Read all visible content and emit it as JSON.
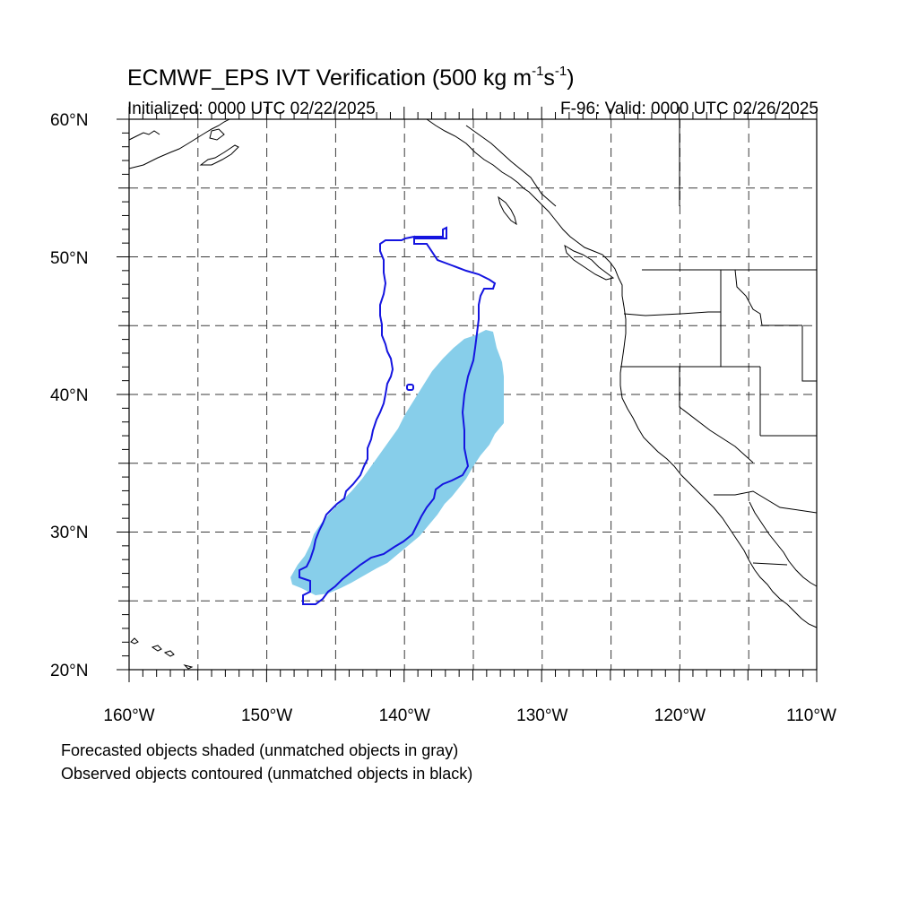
{
  "title": {
    "main": "ECMWF_EPS IVT Verification (500 kg m",
    "exp1": "-1",
    "mid": "s",
    "exp2": "-1",
    "end": ")"
  },
  "subtitle": {
    "initialized": "Initialized: 0000 UTC 02/22/2025",
    "valid": "F-96: Valid: 0000 UTC 02/26/2025"
  },
  "axes": {
    "lat_labels": [
      "20°N",
      "30°N",
      "40°N",
      "50°N",
      "60°N"
    ],
    "lon_labels": [
      "160°W",
      "150°W",
      "140°W",
      "130°W",
      "120°W",
      "110°W"
    ],
    "lat_range": [
      20,
      60
    ],
    "lon_range": [
      -160,
      -110
    ],
    "grid": true,
    "grid_spacing_deg": 5
  },
  "notes": {
    "forecast": "Forecasted objects shaded (unmatched objects in gray)",
    "observed": "Observed objects contoured (unmatched objects in black)"
  },
  "colors": {
    "forecast_fill": "#87ceea",
    "observed_contour": "#1515e0",
    "coastline": "#000000",
    "grid": "#3a3a3a"
  }
}
